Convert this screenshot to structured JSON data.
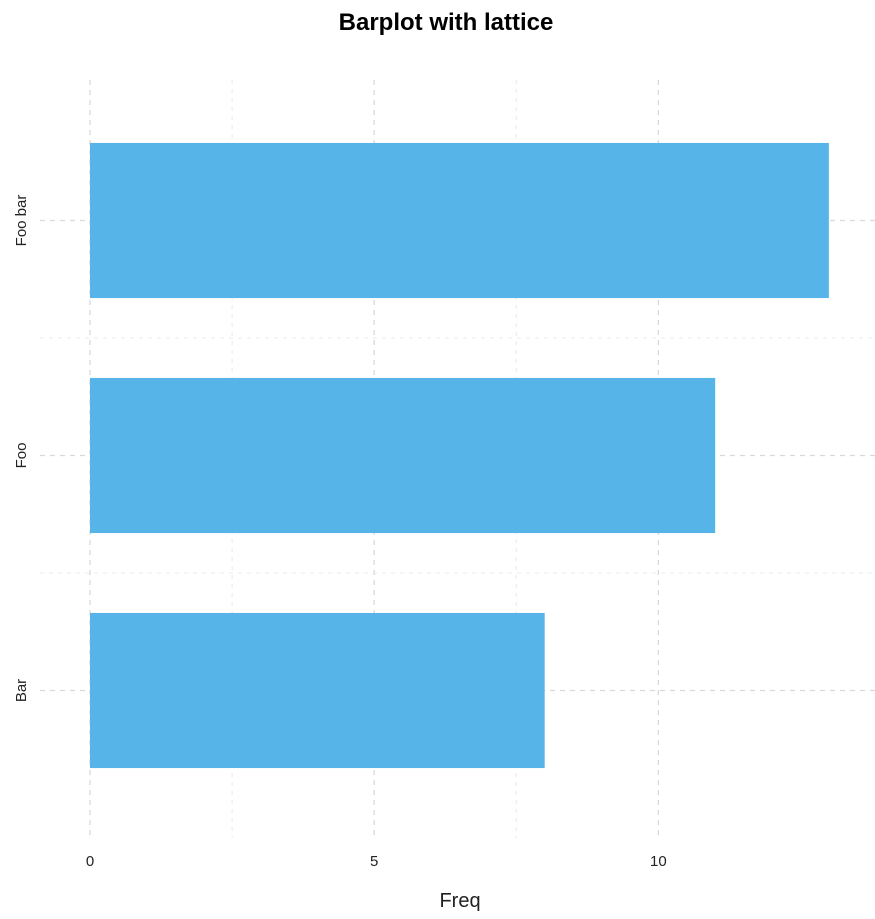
{
  "chart_data": {
    "type": "bar",
    "orientation": "horizontal",
    "title": "Barplot with lattice",
    "xlabel": "Freq",
    "ylabel": "",
    "categories": [
      "Bar",
      "Foo",
      "Foo bar"
    ],
    "values": [
      8,
      11,
      13
    ],
    "xlim": [
      0,
      13.9
    ],
    "xticks": [
      0,
      5,
      10
    ],
    "xtick_labels": [
      "0",
      "5",
      "10"
    ],
    "grid": true,
    "bar_color": "#56B4E9"
  }
}
